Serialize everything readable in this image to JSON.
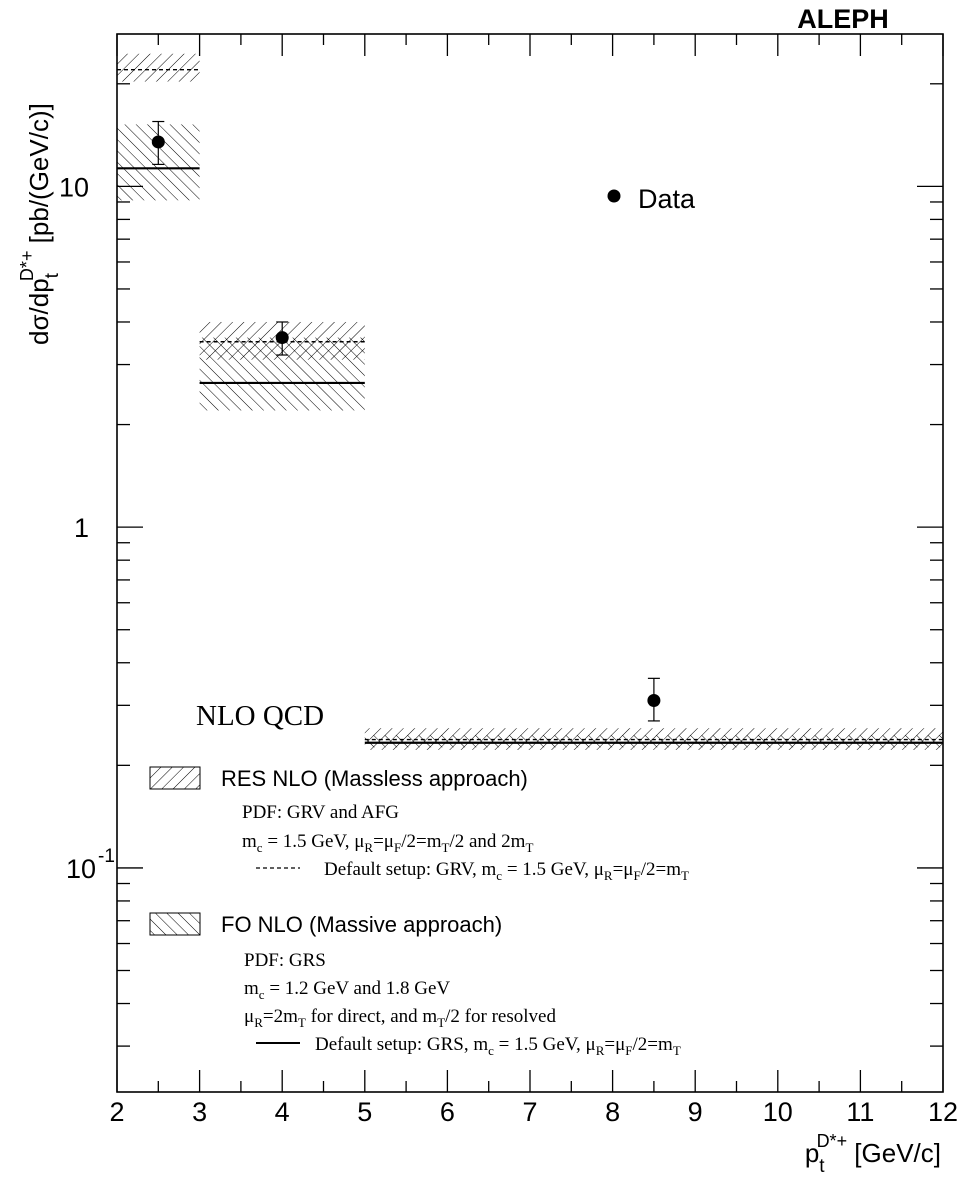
{
  "chart_data": {
    "type": "scatter",
    "title": "ALEPH",
    "xlabel": {
      "base": "p",
      "sub": "t",
      "sup": "D*+",
      "unit": " [GeV/c]"
    },
    "ylabel": {
      "prefix": "dσ/dp",
      "sub": "t",
      "sup": "D*+",
      "unit": " [pb/(GeV/c)]"
    },
    "x_axis": {
      "min": 2,
      "max": 12,
      "scale": "linear",
      "ticks": [
        "2",
        "3",
        "4",
        "5",
        "6",
        "7",
        "8",
        "9",
        "10",
        "11",
        "12"
      ]
    },
    "y_axis": {
      "min": 0.022,
      "max": 28,
      "scale": "log"
    },
    "y_tick_labels": [
      {
        "value": 10,
        "base": "10",
        "exp": ""
      },
      {
        "value": 1,
        "base": "1",
        "exp": ""
      },
      {
        "value": 0.1,
        "base": "10",
        "exp": "-1"
      }
    ],
    "grid": false,
    "data": {
      "name": "Data",
      "points": [
        {
          "x": 2.5,
          "y": 13.5,
          "ylow": 11.6,
          "yhigh": 15.5
        },
        {
          "x": 4.0,
          "y": 3.6,
          "ylow": 3.2,
          "yhigh": 4.0
        },
        {
          "x": 8.5,
          "y": 0.31,
          "ylow": 0.27,
          "yhigh": 0.36
        }
      ]
    },
    "res_nlo": {
      "label": "RES NLO (Massless approach)",
      "bins": [
        {
          "x0": 2,
          "x1": 3,
          "low": 20.3,
          "high": 24.5,
          "default": 22.0
        },
        {
          "x0": 3,
          "x1": 5,
          "low": 3.1,
          "high": 4.0,
          "default": 3.5
        },
        {
          "x0": 5,
          "x1": 12,
          "low": 0.222,
          "high": 0.257,
          "default": 0.238
        }
      ]
    },
    "fo_nlo": {
      "label": "FO NLO (Massive approach)",
      "bins": [
        {
          "x0": 2,
          "x1": 3,
          "low": 9.1,
          "high": 15.2,
          "default": 11.3
        },
        {
          "x0": 3,
          "x1": 5,
          "low": 2.2,
          "high": 3.6,
          "default": 2.65
        },
        {
          "x0": 5,
          "x1": 12,
          "low": 0.226,
          "high": 0.245,
          "default": 0.233
        }
      ]
    },
    "annotations": {
      "data_legend": "Data",
      "nlo_qcd": "NLO QCD",
      "res_pdf": "PDF: GRV and AFG",
      "res_scales": "m_c = 1.5 GeV, μ_R=μ_F/2=m_T/2 and 2m_T",
      "res_default": "Default setup: GRV, m_c = 1.5 GeV, μ_R=μ_F/2=m_T",
      "fo_pdf": "PDF: GRS",
      "fo_mass": "m_c = 1.2 GeV and 1.8 GeV",
      "fo_scales": "μ_R=2m_T for direct, and m_T/2 for resolved",
      "fo_default": "Default setup: GRS, m_c = 1.5 GeV, μ_R=μ_F/2=m_T"
    }
  }
}
